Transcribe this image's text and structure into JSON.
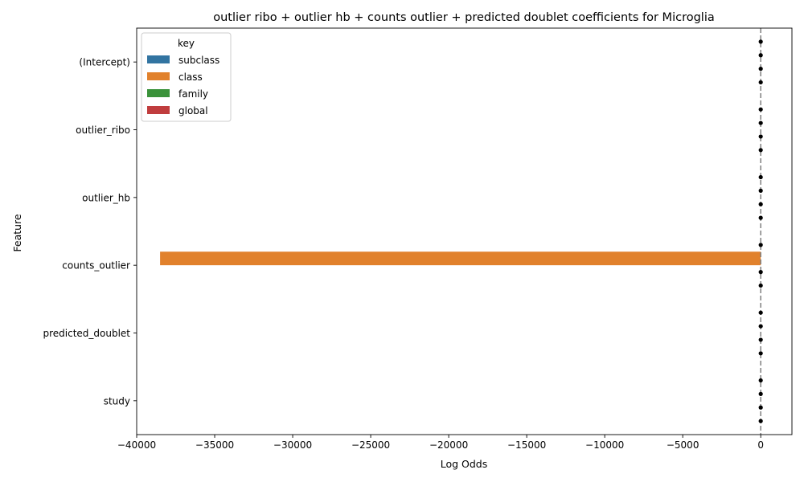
{
  "chart_data": {
    "type": "bar",
    "orientation": "horizontal",
    "title": "outlier ribo + outlier hb + counts outlier + predicted doublet coefficients for Microglia",
    "xlabel": "Log Odds",
    "ylabel": "Feature",
    "categories": [
      "(Intercept)",
      "outlier_ribo",
      "outlier_hb",
      "counts_outlier",
      "predicted_doublet",
      "study"
    ],
    "series": [
      {
        "name": "subclass",
        "color": "#3274a1",
        "values": [
          0,
          0,
          0,
          0,
          0,
          0
        ]
      },
      {
        "name": "class",
        "color": "#e1812c",
        "values": [
          0,
          0,
          0,
          -38500,
          0,
          0
        ]
      },
      {
        "name": "family",
        "color": "#3a923a",
        "values": [
          0,
          0,
          0,
          0,
          0,
          0
        ]
      },
      {
        "name": "global",
        "color": "#c03d3e",
        "values": [
          0,
          0,
          0,
          0,
          0,
          0
        ]
      }
    ],
    "error_points_present": true,
    "xlim": [
      -40000,
      2000
    ],
    "xticks": [
      -40000,
      -35000,
      -30000,
      -25000,
      -20000,
      -15000,
      -10000,
      -5000,
      0
    ],
    "xtick_labels": [
      "−40000",
      "−35000",
      "−30000",
      "−25000",
      "−20000",
      "−15000",
      "−10000",
      "−5000",
      "0"
    ],
    "reference_line": {
      "x": 0,
      "style": "dashed",
      "color": "#7f7f7f"
    },
    "grid": false,
    "legend": {
      "title": "key",
      "placement": "top-left"
    }
  }
}
